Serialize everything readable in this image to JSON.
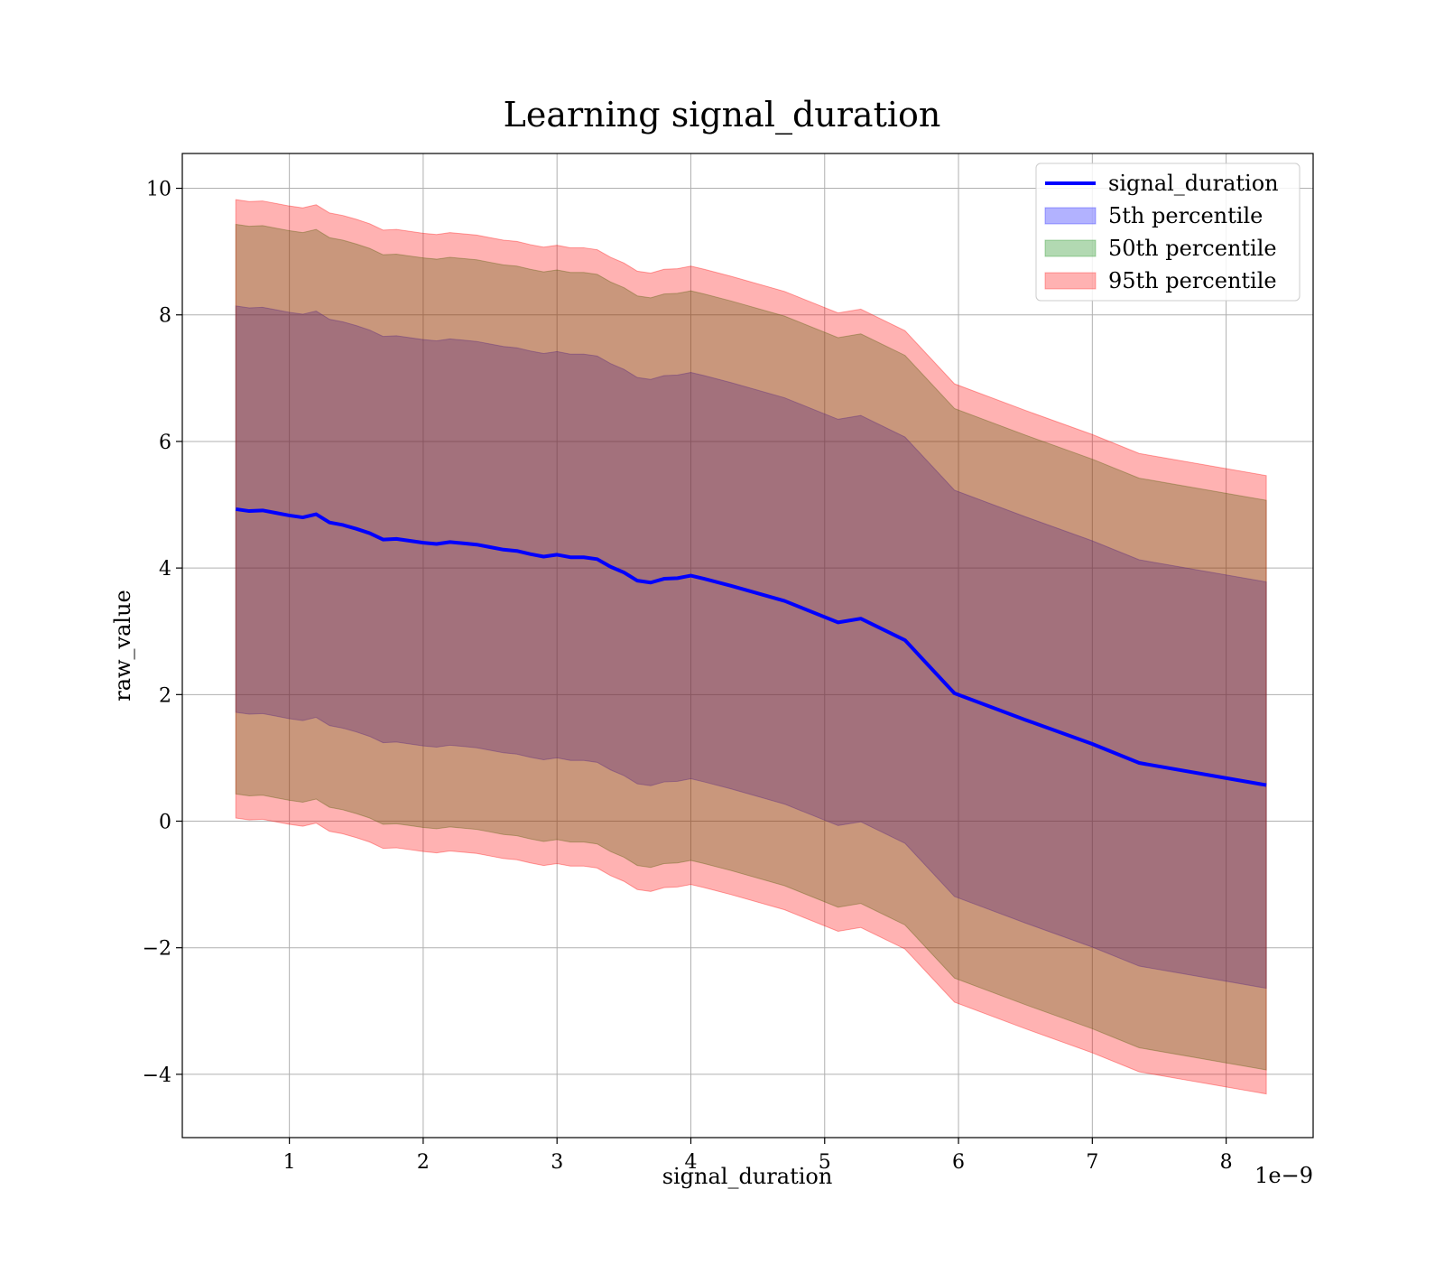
{
  "chart_data": {
    "type": "area",
    "title": "Learning signal_duration",
    "xlabel": "signal_duration",
    "ylabel": "raw_value",
    "x_offset_label": "1e−9",
    "xlim": [
      0.2,
      8.65
    ],
    "ylim": [
      -5.0,
      10.55
    ],
    "xticks": [
      1,
      2,
      3,
      4,
      5,
      6,
      7,
      8
    ],
    "xtick_labels": [
      "1",
      "2",
      "3",
      "4",
      "5",
      "6",
      "7",
      "8"
    ],
    "yticks": [
      -4,
      -2,
      0,
      2,
      4,
      6,
      8,
      10
    ],
    "ytick_labels": [
      "−4",
      "−2",
      "0",
      "2",
      "4",
      "6",
      "8",
      "10"
    ],
    "grid": true,
    "legend_position": "top-right",
    "x": [
      0.6,
      0.7,
      0.8,
      0.9,
      1.0,
      1.1,
      1.2,
      1.3,
      1.4,
      1.5,
      1.6,
      1.7,
      1.8,
      1.9,
      2.0,
      2.1,
      2.2,
      2.3,
      2.4,
      2.5,
      2.6,
      2.7,
      2.8,
      2.9,
      3.0,
      3.1,
      3.2,
      3.3,
      3.4,
      3.5,
      3.6,
      3.7,
      3.8,
      3.9,
      4.0,
      4.1,
      4.3,
      4.7,
      5.1,
      5.27,
      5.6,
      5.97,
      6.5,
      7.0,
      7.35,
      8.3
    ],
    "series": [
      {
        "name": "signal_duration",
        "kind": "line",
        "color": "#0000ff",
        "values": [
          4.93,
          4.9,
          4.91,
          4.87,
          4.83,
          4.8,
          4.85,
          4.72,
          4.68,
          4.62,
          4.55,
          4.45,
          4.46,
          4.43,
          4.4,
          4.38,
          4.41,
          4.39,
          4.37,
          4.33,
          4.29,
          4.27,
          4.22,
          4.18,
          4.21,
          4.17,
          4.17,
          4.14,
          4.02,
          3.93,
          3.8,
          3.77,
          3.83,
          3.84,
          3.88,
          3.83,
          3.72,
          3.48,
          3.14,
          3.2,
          2.86,
          2.02,
          1.6,
          1.22,
          0.92,
          0.57
        ]
      },
      {
        "name": "5th percentile",
        "kind": "band",
        "color": "#0000ff",
        "opacity": 0.3,
        "lower": [
          1.72,
          1.69,
          1.7,
          1.66,
          1.62,
          1.59,
          1.64,
          1.51,
          1.47,
          1.41,
          1.34,
          1.24,
          1.25,
          1.22,
          1.19,
          1.17,
          1.2,
          1.18,
          1.16,
          1.12,
          1.08,
          1.06,
          1.01,
          0.97,
          1.0,
          0.96,
          0.96,
          0.93,
          0.81,
          0.72,
          0.59,
          0.56,
          0.62,
          0.63,
          0.67,
          0.62,
          0.51,
          0.27,
          -0.07,
          -0.01,
          -0.35,
          -1.19,
          -1.61,
          -1.99,
          -2.29,
          -2.64
        ],
        "upper": [
          8.14,
          8.11,
          8.12,
          8.08,
          8.04,
          8.01,
          8.06,
          7.93,
          7.89,
          7.83,
          7.76,
          7.66,
          7.67,
          7.64,
          7.61,
          7.59,
          7.62,
          7.6,
          7.58,
          7.54,
          7.5,
          7.48,
          7.43,
          7.39,
          7.42,
          7.38,
          7.38,
          7.35,
          7.23,
          7.14,
          7.01,
          6.98,
          7.04,
          7.05,
          7.09,
          7.04,
          6.93,
          6.69,
          6.35,
          6.41,
          6.07,
          5.23,
          4.81,
          4.43,
          4.13,
          3.78
        ]
      },
      {
        "name": "50th percentile",
        "kind": "band",
        "color": "#008000",
        "opacity": 0.3,
        "lower": [
          0.43,
          0.4,
          0.41,
          0.37,
          0.33,
          0.3,
          0.35,
          0.22,
          0.18,
          0.12,
          0.05,
          -0.05,
          -0.04,
          -0.07,
          -0.1,
          -0.12,
          -0.09,
          -0.11,
          -0.13,
          -0.17,
          -0.21,
          -0.23,
          -0.28,
          -0.32,
          -0.29,
          -0.33,
          -0.33,
          -0.36,
          -0.48,
          -0.57,
          -0.7,
          -0.73,
          -0.67,
          -0.66,
          -0.62,
          -0.67,
          -0.78,
          -1.02,
          -1.36,
          -1.3,
          -1.64,
          -2.48,
          -2.9,
          -3.28,
          -3.58,
          -3.93
        ],
        "upper": [
          9.43,
          9.4,
          9.41,
          9.37,
          9.33,
          9.3,
          9.35,
          9.22,
          9.18,
          9.12,
          9.05,
          8.95,
          8.96,
          8.93,
          8.9,
          8.88,
          8.91,
          8.89,
          8.87,
          8.83,
          8.79,
          8.77,
          8.72,
          8.68,
          8.71,
          8.67,
          8.67,
          8.64,
          8.52,
          8.43,
          8.3,
          8.27,
          8.33,
          8.34,
          8.38,
          8.33,
          8.22,
          7.98,
          7.64,
          7.7,
          7.36,
          6.52,
          6.1,
          5.72,
          5.42,
          5.07
        ]
      },
      {
        "name": "95th percentile",
        "kind": "band",
        "color": "#ff0000",
        "opacity": 0.3,
        "lower": [
          0.05,
          0.02,
          0.03,
          -0.01,
          -0.05,
          -0.08,
          -0.03,
          -0.16,
          -0.2,
          -0.26,
          -0.33,
          -0.43,
          -0.42,
          -0.45,
          -0.48,
          -0.5,
          -0.47,
          -0.49,
          -0.51,
          -0.55,
          -0.59,
          -0.61,
          -0.66,
          -0.7,
          -0.67,
          -0.71,
          -0.71,
          -0.74,
          -0.86,
          -0.95,
          -1.08,
          -1.11,
          -1.05,
          -1.04,
          -1.0,
          -1.05,
          -1.16,
          -1.4,
          -1.74,
          -1.68,
          -2.02,
          -2.86,
          -3.28,
          -3.66,
          -3.96,
          -4.31
        ],
        "upper": [
          9.82,
          9.79,
          9.8,
          9.76,
          9.72,
          9.69,
          9.74,
          9.61,
          9.57,
          9.51,
          9.44,
          9.34,
          9.35,
          9.32,
          9.29,
          9.27,
          9.3,
          9.28,
          9.26,
          9.22,
          9.18,
          9.16,
          9.11,
          9.07,
          9.1,
          9.06,
          9.06,
          9.03,
          8.91,
          8.82,
          8.69,
          8.66,
          8.72,
          8.73,
          8.77,
          8.72,
          8.61,
          8.37,
          8.03,
          8.09,
          7.75,
          6.91,
          6.49,
          6.11,
          5.81,
          5.46
        ]
      }
    ]
  }
}
